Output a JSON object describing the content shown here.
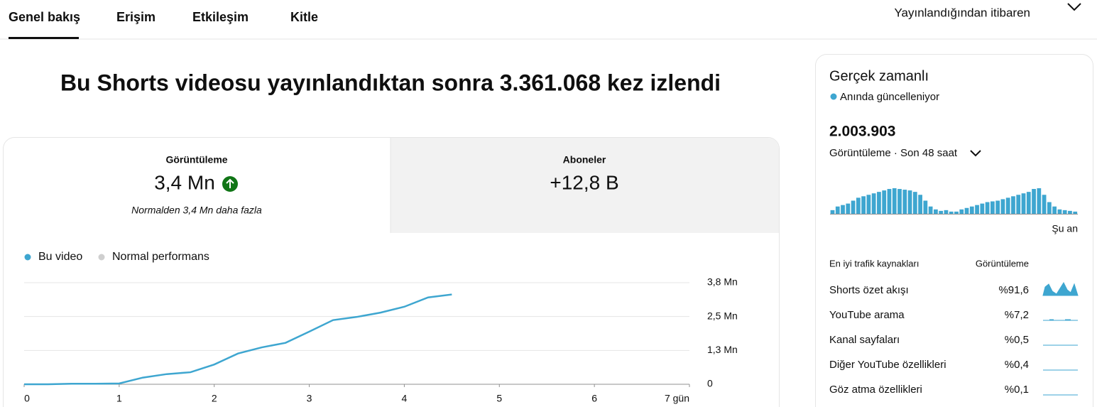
{
  "tabs": [
    "Genel bakış",
    "Erişim",
    "Etkileşim",
    "Kitle"
  ],
  "period": "Yayınlandığından itibaren",
  "headline": "Bu Shorts videosu yayınlandıktan sonra 3.361.068 kez izlendi",
  "metrics": [
    {
      "label": "Görüntüleme",
      "value": "3,4 Mn",
      "note": "Normalden 3,4 Mn daha fazla"
    },
    {
      "label": "Aboneler",
      "value": "+12,8 B"
    }
  ],
  "chart_data": {
    "type": "line",
    "x": [
      0,
      0.25,
      0.5,
      0.75,
      1,
      1.25,
      1.5,
      1.75,
      2,
      2.25,
      2.5,
      2.75,
      3,
      3.25,
      3.5,
      3.75,
      4,
      4.25,
      4.5
    ],
    "series": [
      {
        "name": "Bu video",
        "color": "#3ea6d0",
        "values": [
          0,
          0,
          20000,
          20000,
          30000,
          250000,
          380000,
          450000,
          740000,
          1150000,
          1380000,
          1550000,
          1970000,
          2400000,
          2520000,
          2680000,
          2900000,
          3250000,
          3360000
        ]
      },
      {
        "name": "Normal performans",
        "color": "#cfcfcf",
        "values": [
          null,
          null,
          null,
          null,
          null,
          null,
          null,
          null,
          null,
          null,
          null,
          null,
          null,
          null,
          null,
          null,
          null,
          null,
          null
        ]
      }
    ],
    "xlim": [
      0,
      7
    ],
    "xticks": [
      0,
      1,
      2,
      3,
      4,
      5,
      6,
      {
        "value": 7,
        "label": "7 gün"
      }
    ],
    "ylim": [
      0,
      3800000
    ],
    "yticks": [
      0,
      {
        "value": 1266667,
        "label": "1,3 Mn"
      },
      {
        "value": 2533333,
        "label": "2,5 Mn"
      },
      {
        "value": 3800000,
        "label": "3,8 Mn"
      }
    ],
    "grid": true
  },
  "realtime": {
    "title": "Gerçek zamanlı",
    "status": "Anında güncelleniyor",
    "total": "2.003.903",
    "subtitle": "Görüntüleme · Son 48 saat",
    "now_label": "Şu an",
    "hourly": [
      5,
      10,
      12,
      14,
      18,
      22,
      24,
      26,
      28,
      30,
      32,
      34,
      35,
      34,
      33,
      32,
      30,
      26,
      18,
      10,
      6,
      4,
      5,
      3,
      3,
      6,
      8,
      10,
      12,
      14,
      16,
      17,
      18,
      20,
      22,
      24,
      26,
      28,
      30,
      34,
      35,
      26,
      16,
      10,
      6,
      5,
      4,
      3
    ],
    "color": "#3ea6d0",
    "traffic_header": [
      "En iyi trafik kaynakları",
      "Görüntüleme"
    ],
    "traffic": [
      [
        "Shorts özet akışı",
        "%91,6"
      ],
      [
        "YouTube arama",
        "%7,2"
      ],
      [
        "Kanal sayfaları",
        "%0,5"
      ],
      [
        "Diğer YouTube özellikleri",
        "%0,4"
      ],
      [
        "Göz atma özellikleri",
        "%0,1"
      ]
    ]
  }
}
